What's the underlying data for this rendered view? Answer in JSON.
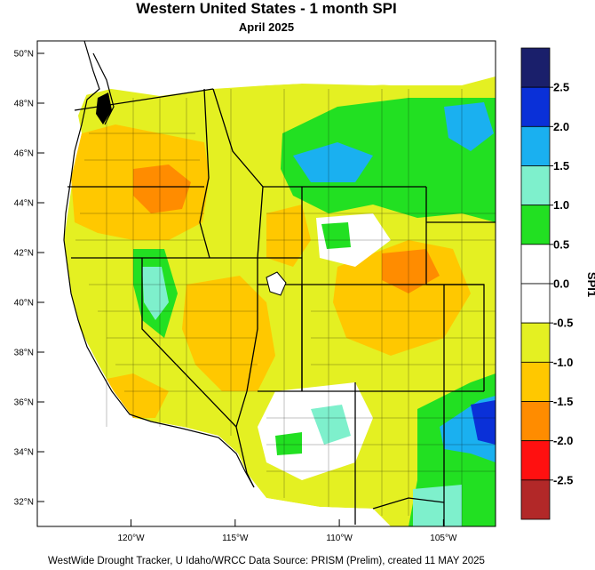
{
  "title": "Western United States - 1 month SPI",
  "subtitle": "April 2025",
  "footer": "WestWide Drought Tracker, U Idaho/WRCC Data Source: PRISM (Prelim), created 11 MAY 2025",
  "map": {
    "lon_range": [
      -124.5,
      -102.5
    ],
    "lat_range": [
      31,
      50.5
    ],
    "lat_ticks": [
      {
        "value": 50,
        "label": "50°N"
      },
      {
        "value": 48,
        "label": "48°N"
      },
      {
        "value": 46,
        "label": "46°N"
      },
      {
        "value": 44,
        "label": "44°N"
      },
      {
        "value": 42,
        "label": "42°N"
      },
      {
        "value": 40,
        "label": "40°N"
      },
      {
        "value": 38,
        "label": "38°N"
      },
      {
        "value": 36,
        "label": "36°N"
      },
      {
        "value": 34,
        "label": "34°N"
      },
      {
        "value": 32,
        "label": "32°N"
      }
    ],
    "lon_ticks": [
      {
        "value": -120,
        "label": "120°W"
      },
      {
        "value": -115,
        "label": "115°W"
      },
      {
        "value": -110,
        "label": "110°W"
      },
      {
        "value": -105,
        "label": "105°W"
      }
    ]
  },
  "colorbar": {
    "axis_label": "SPI1",
    "boundaries": [
      "2.5",
      "2.0",
      "1.5",
      "1.0",
      "0.5",
      "0.0",
      "-0.5",
      "-1.0",
      "-1.5",
      "-2.0",
      "-2.5"
    ],
    "colors": [
      "#1a1f6b",
      "#0a30d8",
      "#1ab0f0",
      "#7ef0cc",
      "#22e022",
      "#ffffff",
      "#ffffff",
      "#e4f022",
      "#ffc800",
      "#ff8c00",
      "#ff1010",
      "#b22828"
    ]
  }
}
